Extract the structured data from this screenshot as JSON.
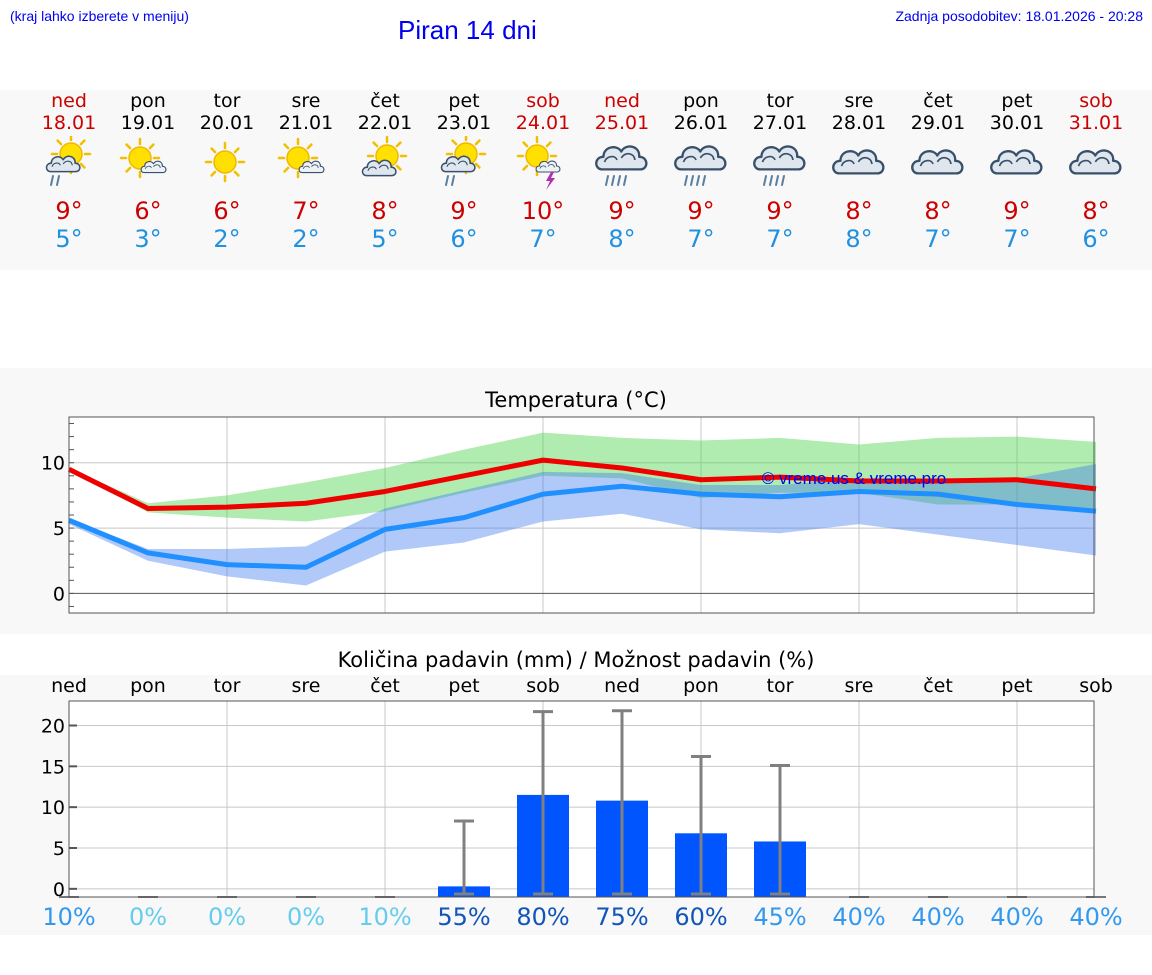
{
  "header": {
    "hint": "(kraj lahko izberete v meniju)",
    "title": "Piran 14 dni",
    "updated": "Zadnja posodobitev: 18.01.2026 - 20:28"
  },
  "days": [
    {
      "name": "ned",
      "date": "18.01",
      "weekend": true,
      "icon": "partly-sunny-rain-icon",
      "tmax": "9°",
      "tmin": "5°"
    },
    {
      "name": "pon",
      "date": "19.01",
      "weekend": false,
      "icon": "sun-small-cloud-icon",
      "tmax": "6°",
      "tmin": "3°"
    },
    {
      "name": "tor",
      "date": "20.01",
      "weekend": false,
      "icon": "sun-icon",
      "tmax": "6°",
      "tmin": "2°"
    },
    {
      "name": "sre",
      "date": "21.01",
      "weekend": false,
      "icon": "sun-small-cloud-icon",
      "tmax": "7°",
      "tmin": "2°"
    },
    {
      "name": "čet",
      "date": "22.01",
      "weekend": false,
      "icon": "partly-sunny-icon",
      "tmax": "8°",
      "tmin": "5°"
    },
    {
      "name": "pet",
      "date": "23.01",
      "weekend": false,
      "icon": "partly-sunny-rain-icon",
      "tmax": "9°",
      "tmin": "6°"
    },
    {
      "name": "sob",
      "date": "24.01",
      "weekend": true,
      "icon": "sun-thunder-icon",
      "tmax": "10°",
      "tmin": "7°"
    },
    {
      "name": "ned",
      "date": "25.01",
      "weekend": true,
      "icon": "cloud-rain-icon",
      "tmax": "9°",
      "tmin": "8°"
    },
    {
      "name": "pon",
      "date": "26.01",
      "weekend": false,
      "icon": "cloud-rain-icon",
      "tmax": "9°",
      "tmin": "7°"
    },
    {
      "name": "tor",
      "date": "27.01",
      "weekend": false,
      "icon": "cloud-rain-icon",
      "tmax": "9°",
      "tmin": "7°"
    },
    {
      "name": "sre",
      "date": "28.01",
      "weekend": false,
      "icon": "cloud-icon",
      "tmax": "8°",
      "tmin": "8°"
    },
    {
      "name": "čet",
      "date": "29.01",
      "weekend": false,
      "icon": "cloud-icon",
      "tmax": "8°",
      "tmin": "7°"
    },
    {
      "name": "pet",
      "date": "30.01",
      "weekend": false,
      "icon": "cloud-icon",
      "tmax": "9°",
      "tmin": "7°"
    },
    {
      "name": "sob",
      "date": "31.01",
      "weekend": true,
      "icon": "cloud-icon",
      "tmax": "8°",
      "tmin": "6°"
    }
  ],
  "colors": {
    "weekend": "#cc0000",
    "max": "#ee0000",
    "min": "#2090ff",
    "bar": "#0055ff",
    "error": "#808080"
  },
  "chart_data": [
    {
      "type": "line",
      "title": "Temperatura (°C)",
      "watermark": "© vreme.us & vreme.pro",
      "ylim": [
        -1.5,
        13.5
      ],
      "yticks": [
        0,
        5,
        10
      ],
      "series": [
        {
          "name": "max",
          "values": [
            9.5,
            6.5,
            6.6,
            6.9,
            7.8,
            9.0,
            10.2,
            9.6,
            8.7,
            8.9,
            8.6,
            8.6,
            8.7,
            8.0
          ],
          "band_low": [
            9.5,
            6.2,
            5.8,
            5.5,
            6.3,
            7.7,
            9.0,
            8.8,
            7.3,
            7.7,
            7.7,
            6.8,
            6.8,
            6.5
          ],
          "band_high": [
            9.6,
            6.9,
            7.5,
            8.5,
            9.6,
            11.0,
            12.3,
            11.9,
            11.7,
            11.9,
            11.4,
            11.9,
            12.0,
            11.6
          ]
        },
        {
          "name": "min",
          "values": [
            5.6,
            3.1,
            2.2,
            2.0,
            4.9,
            5.8,
            7.6,
            8.2,
            7.6,
            7.4,
            7.8,
            7.6,
            6.8,
            6.3
          ],
          "band_low": [
            5.3,
            2.5,
            1.3,
            0.6,
            3.2,
            3.9,
            5.5,
            6.1,
            4.9,
            4.6,
            5.3,
            4.5,
            3.7,
            2.9
          ],
          "band_high": [
            5.7,
            3.4,
            3.4,
            3.6,
            6.5,
            7.9,
            9.3,
            9.2,
            8.3,
            8.3,
            8.8,
            8.6,
            8.8,
            9.9
          ]
        }
      ]
    },
    {
      "type": "bar",
      "title": "Količina padavin (mm) / Možnost padavin (%)",
      "categories": [
        "ned",
        "pon",
        "tor",
        "sre",
        "čet",
        "pet",
        "sob",
        "ned",
        "pon",
        "tor",
        "sre",
        "čet",
        "pet",
        "sob"
      ],
      "values": [
        0,
        0,
        0,
        0,
        0,
        0.3,
        11.5,
        10.8,
        6.8,
        5.8,
        0,
        0,
        0,
        0
      ],
      "error_high": [
        0,
        0,
        0,
        0,
        0,
        8.3,
        21.7,
        21.8,
        16.2,
        15.1,
        0,
        0,
        0,
        0
      ],
      "probability": [
        "10%",
        "0%",
        "0%",
        "0%",
        "10%",
        "55%",
        "80%",
        "75%",
        "60%",
        "45%",
        "40%",
        "40%",
        "40%",
        "40%"
      ],
      "probability_colors": [
        "#3399ee",
        "#66ccee",
        "#66ccee",
        "#66ccee",
        "#66ccee",
        "#1155bb",
        "#1155bb",
        "#1155bb",
        "#1155bb",
        "#3399ee",
        "#3399ee",
        "#3399ee",
        "#3399ee",
        "#3399ee"
      ],
      "ylim": [
        -1,
        23
      ],
      "yticks": [
        0,
        5,
        10,
        15,
        20
      ]
    }
  ]
}
